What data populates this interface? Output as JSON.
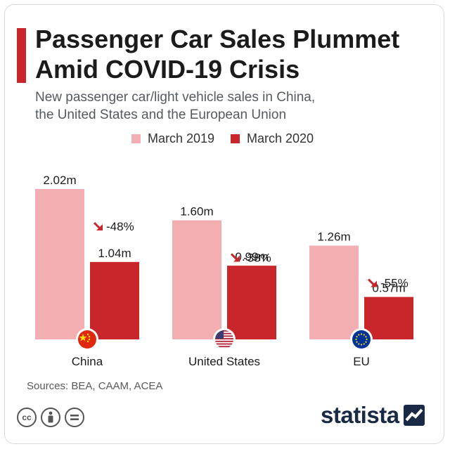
{
  "header": {
    "title_line1": "Passenger Car Sales Plummet",
    "title_line2": "Amid COVID-19 Crisis",
    "subtitle_line1": "New passenger car/light vehicle sales in China,",
    "subtitle_line2": "the United States and the European Union"
  },
  "colors": {
    "accent": "#c8262b",
    "series_2019": "#f3aeb2",
    "series_2020": "#c8262b",
    "arrow": "#c8262b",
    "text": "#1b1b1b",
    "logo": "#1a2a45"
  },
  "chart_data": {
    "type": "bar",
    "unit": "m",
    "categories": [
      "China",
      "United States",
      "EU"
    ],
    "series": [
      {
        "name": "March 2019",
        "values": [
          2.02,
          1.6,
          1.26
        ],
        "labels": [
          "2.02m",
          "1.60m",
          "1.26m"
        ]
      },
      {
        "name": "March 2020",
        "values": [
          1.04,
          0.99,
          0.57
        ],
        "labels": [
          "1.04m",
          "0.99m",
          "0.57m"
        ]
      }
    ],
    "changes": [
      "-48%",
      "-38%",
      "-55%"
    ],
    "flags": [
      "china-flag-icon",
      "us-flag-icon",
      "eu-flag-icon"
    ],
    "ylim": [
      0,
      2.2
    ],
    "grid": false,
    "legend_position": "top-center"
  },
  "footer": {
    "source": "Sources: BEA, CAAM, ACEA",
    "brand": "statista",
    "license_icons": [
      "cc-icon",
      "attribution-icon",
      "no-derivatives-icon"
    ]
  }
}
